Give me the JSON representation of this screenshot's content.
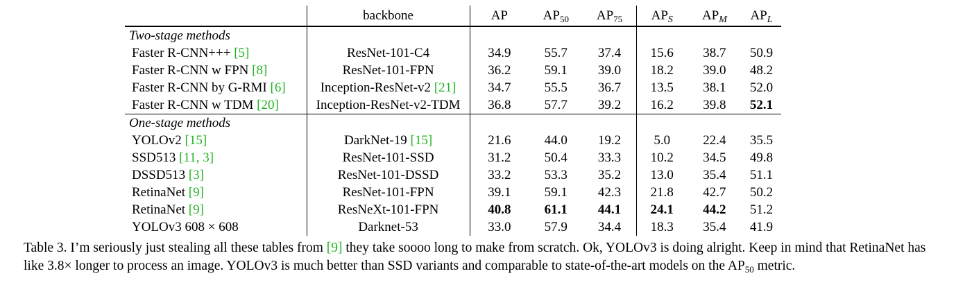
{
  "table": {
    "header": {
      "backbone": "backbone",
      "ap": "AP",
      "ap50": {
        "base": "AP",
        "sub": "50"
      },
      "ap75": {
        "base": "AP",
        "sub": "75"
      },
      "aps": {
        "base": "AP",
        "sub": "S"
      },
      "apm": {
        "base": "AP",
        "sub": "M"
      },
      "apl": {
        "base": "AP",
        "sub": "L"
      }
    },
    "sections": [
      {
        "title": "Two-stage methods",
        "rows": [
          {
            "method": "Faster R-CNN+++ ",
            "cite": "[5]",
            "backbone": "ResNet-101-C4",
            "backbone_cite": "",
            "ap": "34.9",
            "ap50": "55.7",
            "ap75": "37.4",
            "aps": "15.6",
            "apm": "38.7",
            "apl": "50.9"
          },
          {
            "method": "Faster R-CNN w FPN ",
            "cite": "[8]",
            "backbone": "ResNet-101-FPN",
            "backbone_cite": "",
            "ap": "36.2",
            "ap50": "59.1",
            "ap75": "39.0",
            "aps": "18.2",
            "apm": "39.0",
            "apl": "48.2"
          },
          {
            "method": "Faster R-CNN by G-RMI ",
            "cite": "[6]",
            "backbone": "Inception-ResNet-v2 ",
            "backbone_cite": "[21]",
            "ap": "34.7",
            "ap50": "55.5",
            "ap75": "36.7",
            "aps": "13.5",
            "apm": "38.1",
            "apl": "52.0"
          },
          {
            "method": "Faster R-CNN w TDM ",
            "cite": "[20]",
            "backbone": "Inception-ResNet-v2-TDM",
            "backbone_cite": "",
            "ap": "36.8",
            "ap50": "57.7",
            "ap75": "39.2",
            "aps": "16.2",
            "apm": "39.8",
            "apl": "52.1"
          }
        ]
      },
      {
        "title": "One-stage methods",
        "rows": [
          {
            "method": "YOLOv2 ",
            "cite": "[15]",
            "backbone": "DarkNet-19 ",
            "backbone_cite": "[15]",
            "ap": "21.6",
            "ap50": "44.0",
            "ap75": "19.2",
            "aps": "5.0",
            "apm": "22.4",
            "apl": "35.5"
          },
          {
            "method": "SSD513 ",
            "cite": "[11, 3]",
            "backbone": "ResNet-101-SSD",
            "backbone_cite": "",
            "ap": "31.2",
            "ap50": "50.4",
            "ap75": "33.3",
            "aps": "10.2",
            "apm": "34.5",
            "apl": "49.8"
          },
          {
            "method": "DSSD513 ",
            "cite": "[3]",
            "backbone": "ResNet-101-DSSD",
            "backbone_cite": "",
            "ap": "33.2",
            "ap50": "53.3",
            "ap75": "35.2",
            "aps": "13.0",
            "apm": "35.4",
            "apl": "51.1"
          },
          {
            "method": "RetinaNet ",
            "cite": "[9]",
            "backbone": "ResNet-101-FPN",
            "backbone_cite": "",
            "ap": "39.1",
            "ap50": "59.1",
            "ap75": "42.3",
            "aps": "21.8",
            "apm": "42.7",
            "apl": "50.2"
          },
          {
            "method": "RetinaNet ",
            "cite": "[9]",
            "backbone": "ResNeXt-101-FPN",
            "backbone_cite": "",
            "ap": "40.8",
            "ap50": "61.1",
            "ap75": "44.1",
            "aps": "24.1",
            "apm": "44.2",
            "apl": "51.2"
          },
          {
            "method": "YOLOv3 608 × 608",
            "cite": "",
            "backbone": "Darknet-53",
            "backbone_cite": "",
            "ap": "33.0",
            "ap50": "57.9",
            "ap75": "34.4",
            "aps": "18.3",
            "apm": "35.4",
            "apl": "41.9"
          }
        ]
      }
    ]
  },
  "caption": {
    "p1": "Table 3. I’m seriously just stealing all these tables from ",
    "cite": "[9]",
    "p2": " they take soooo long to make from scratch. Ok, YOLOv3 is doing alright. Keep in mind that RetinaNet has like 3.8× longer to process an image. YOLOv3 is much better than SSD variants and comparable to state-of-the-art models on the ",
    "metric_base": "AP",
    "metric_sub": "50",
    "p3": " metric."
  },
  "colors": {
    "citation": "#22b422"
  }
}
